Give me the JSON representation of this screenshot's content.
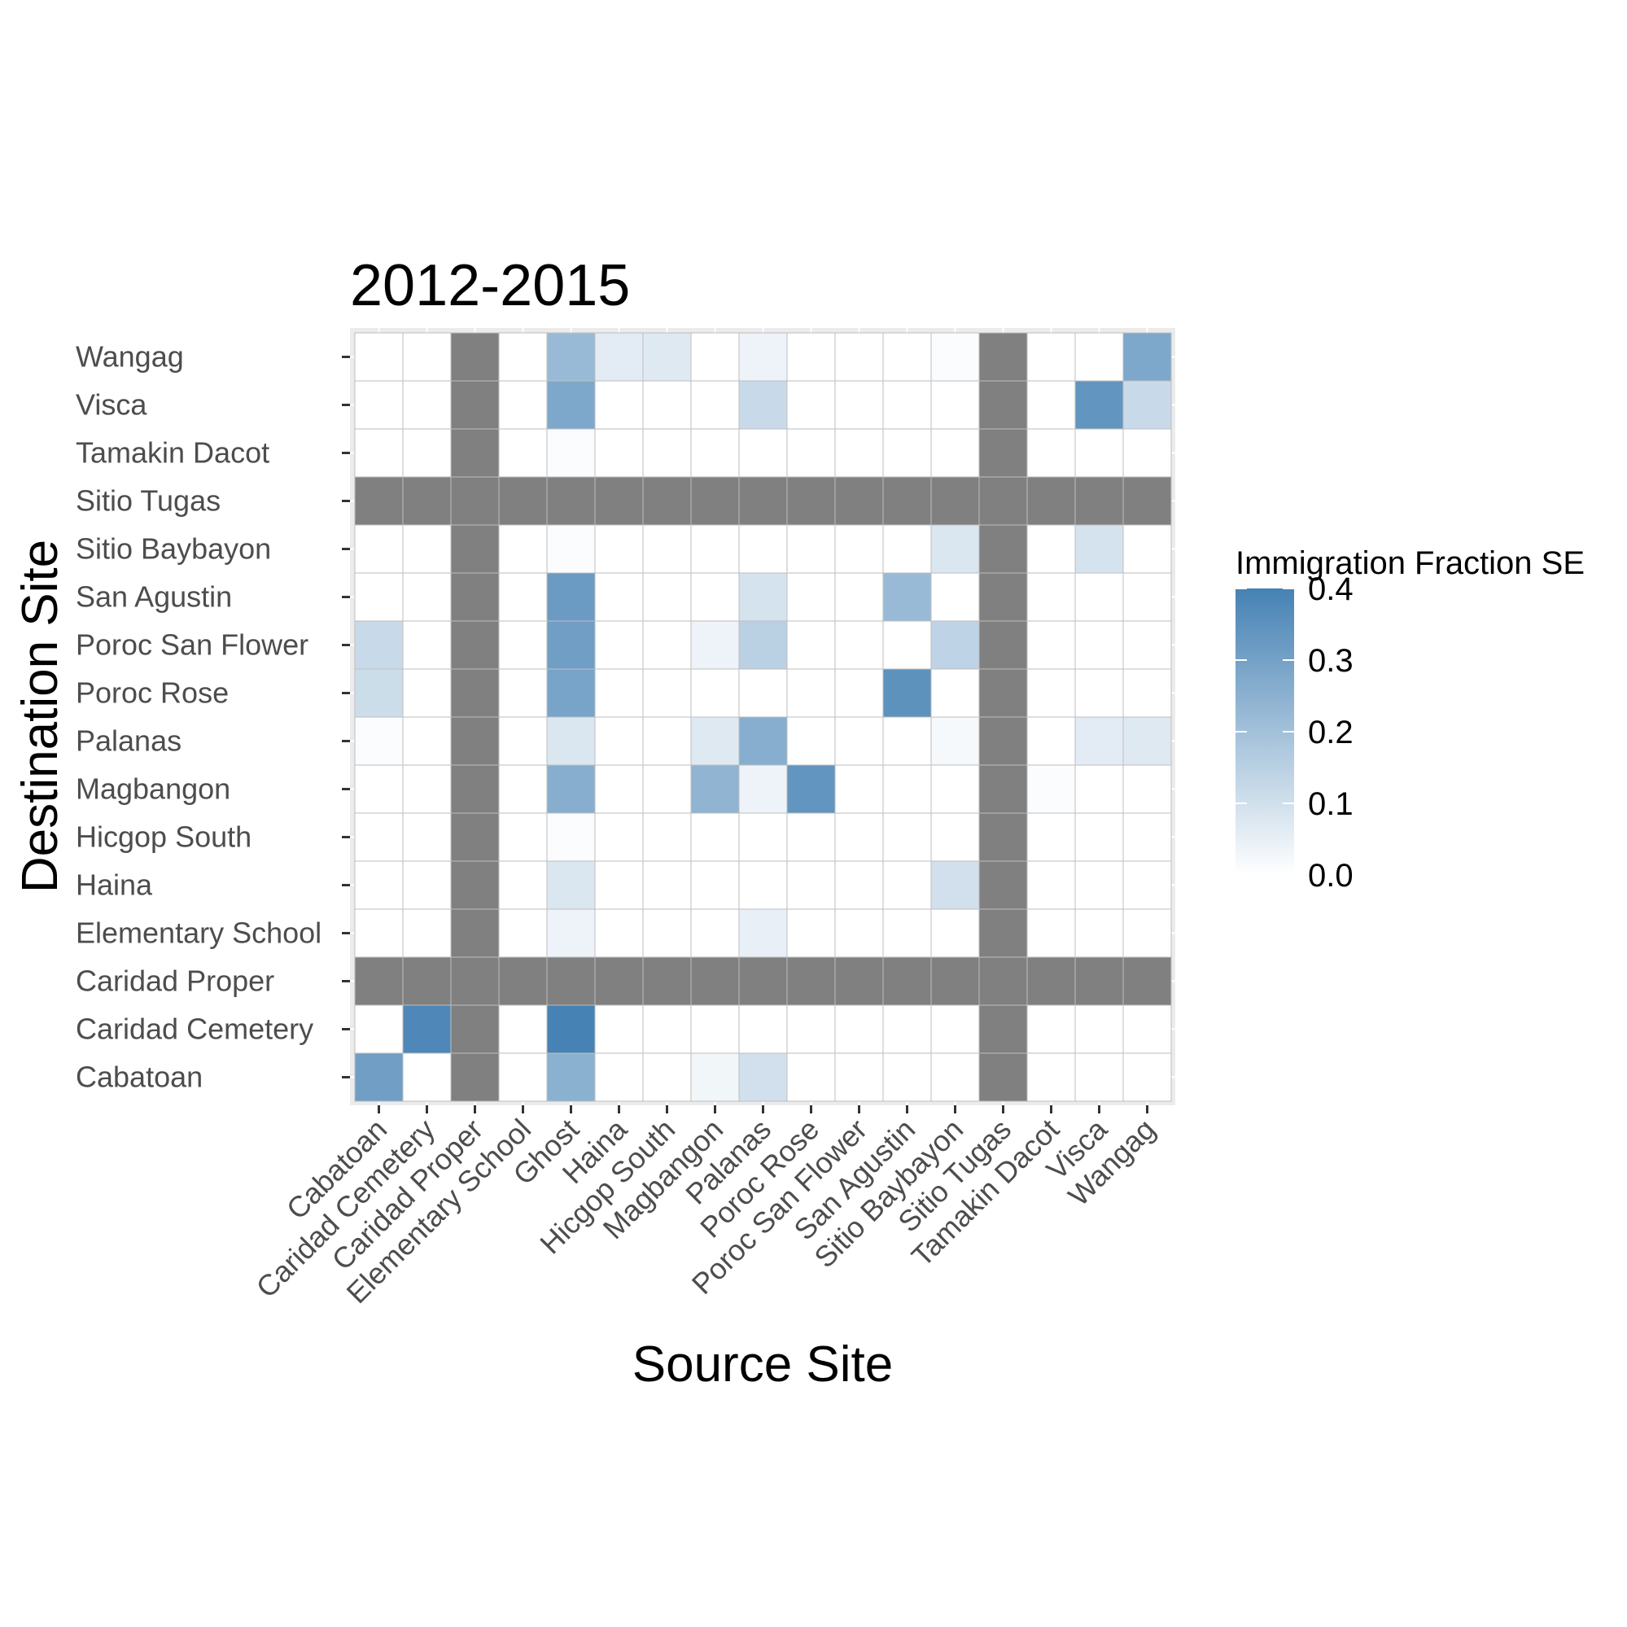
{
  "chart_data": {
    "type": "heatmap",
    "title": "2012-2015",
    "xlabel": "Source Site",
    "ylabel": "Destination Site",
    "x_categories": [
      "Cabatoan",
      "Caridad Cemetery",
      "Caridad Proper",
      "Elementary School",
      "Ghost",
      "Haina",
      "Hicgop South",
      "Magbangon",
      "Palanas",
      "Poroc Rose",
      "Poroc San Flower",
      "San Agustin",
      "Sitio Baybayon",
      "Sitio Tugas",
      "Tamakin Dacot",
      "Visca",
      "Wangag"
    ],
    "y_categories": [
      "Wangag",
      "Visca",
      "Tamakin Dacot",
      "Sitio Tugas",
      "Sitio Baybayon",
      "San Agustin",
      "Poroc San Flower",
      "Poroc Rose",
      "Palanas",
      "Magbangon",
      "Hicgop South",
      "Haina",
      "Elementary School",
      "Caridad Proper",
      "Caridad Cemetery",
      "Cabatoan"
    ],
    "values": [
      [
        0,
        0,
        null,
        0,
        0.22,
        0.06,
        0.07,
        0,
        0.04,
        0,
        0,
        0,
        0.01,
        null,
        0,
        0,
        0.28
      ],
      [
        0,
        0,
        null,
        0,
        0.28,
        0,
        0,
        0,
        0.12,
        0,
        0,
        0,
        0,
        null,
        0,
        0.34,
        0.12
      ],
      [
        0,
        0,
        null,
        0,
        0.01,
        0,
        0,
        0,
        0,
        0,
        0,
        0,
        0,
        null,
        0,
        0,
        0
      ],
      [
        null,
        null,
        null,
        null,
        null,
        null,
        null,
        null,
        null,
        null,
        null,
        null,
        null,
        null,
        null,
        null,
        null
      ],
      [
        0,
        0,
        null,
        0,
        0.01,
        0,
        0,
        0,
        0,
        0,
        0,
        0,
        0.08,
        null,
        0,
        0.09,
        0
      ],
      [
        0,
        0,
        null,
        0,
        0.32,
        0,
        0,
        0,
        0.09,
        0,
        0,
        0.22,
        0,
        null,
        0,
        0,
        0
      ],
      [
        0.12,
        0,
        null,
        0,
        0.31,
        0,
        0,
        0.04,
        0.15,
        0,
        0,
        0,
        0.14,
        null,
        0,
        0,
        0
      ],
      [
        0.11,
        0,
        null,
        0,
        0.29,
        0,
        0,
        0,
        0,
        0,
        0,
        0.35,
        0,
        null,
        0,
        0,
        0
      ],
      [
        0.01,
        0,
        null,
        0,
        0.08,
        0,
        0,
        0.07,
        0.26,
        0,
        0,
        0,
        0.02,
        null,
        0,
        0.06,
        0.07
      ],
      [
        0,
        0,
        null,
        0,
        0.26,
        0,
        0,
        0.24,
        0.04,
        0.34,
        0,
        0,
        0,
        null,
        0.01,
        0,
        0
      ],
      [
        0,
        0,
        null,
        0,
        0.01,
        0,
        0,
        0,
        0,
        0,
        0,
        0,
        0,
        null,
        0,
        0,
        0
      ],
      [
        0,
        0,
        null,
        0,
        0.08,
        0,
        0,
        0,
        0,
        0,
        0,
        0,
        0.1,
        null,
        0,
        0,
        0
      ],
      [
        0,
        0,
        null,
        0,
        0.04,
        0,
        0,
        0,
        0.05,
        0,
        0,
        0,
        0,
        null,
        0,
        0,
        0
      ],
      [
        null,
        null,
        null,
        null,
        null,
        null,
        null,
        null,
        null,
        null,
        null,
        null,
        null,
        null,
        null,
        null,
        null
      ],
      [
        0,
        0.38,
        null,
        0,
        0.4,
        0,
        0,
        0,
        0,
        0,
        0,
        0,
        0,
        null,
        0,
        0,
        0
      ],
      [
        0.31,
        0,
        null,
        0,
        0.25,
        0,
        0,
        0.03,
        0.1,
        0,
        0,
        0,
        0,
        null,
        0,
        0,
        0
      ]
    ],
    "legend": {
      "title": "Immigration Fraction SE",
      "ticks": [
        0.4,
        0.3,
        0.2,
        0.1,
        0.0
      ],
      "tick_labels": [
        "0.4",
        "0.3",
        "0.2",
        "0.1",
        "0.0"
      ],
      "range": [
        0,
        0.4
      ],
      "placement": "right"
    },
    "colors": {
      "low": "#ffffff",
      "high": "#4682b4",
      "na": "#808080",
      "panel_background": "#ebebeb",
      "grid": "#ffffff",
      "tile_border": "#bebebe"
    }
  }
}
